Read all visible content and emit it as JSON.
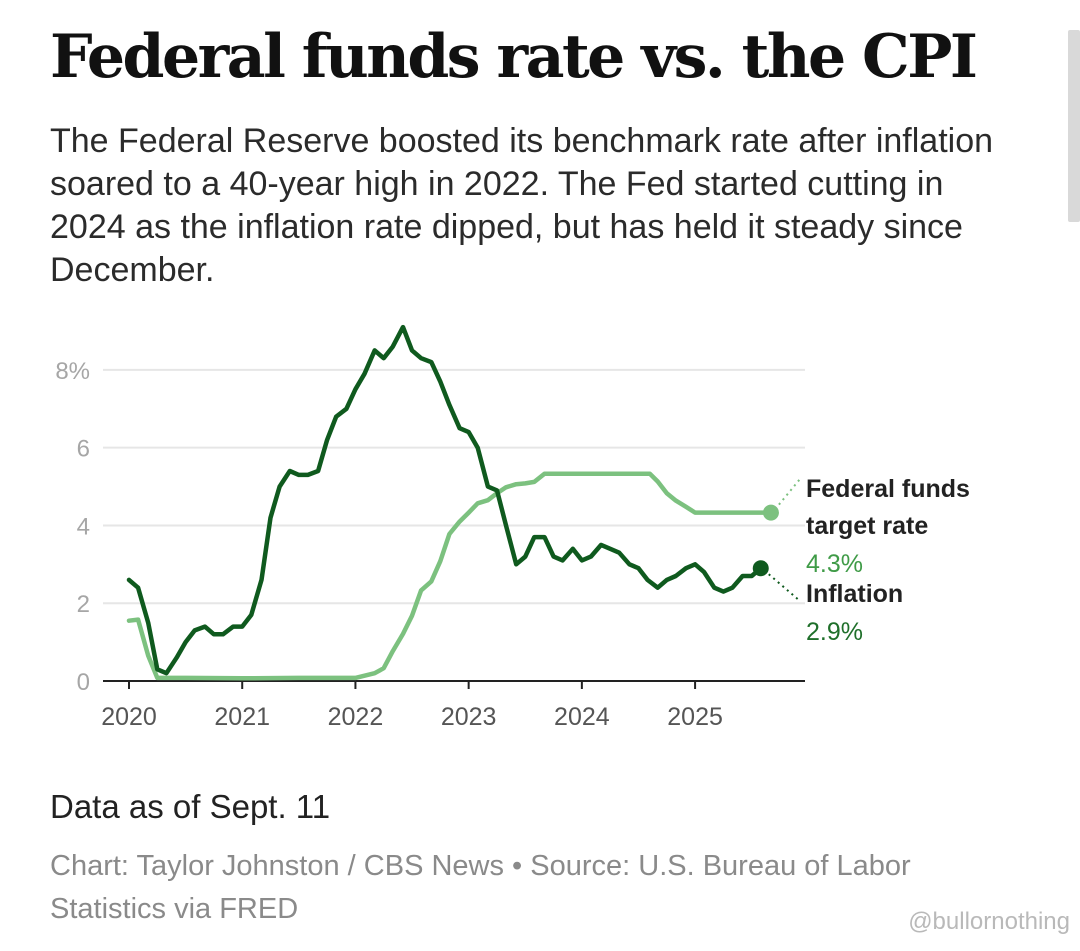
{
  "title": "Federal funds rate vs. the CPI",
  "subtitle": "The Federal Reserve boosted its benchmark rate after inflation soared to a 40-year high in 2022. The Fed started cutting in 2024 as the inflation rate dipped, but has held it steady since December.",
  "footnote": "Data as of Sept. 11",
  "credit": "Chart: Taylor Johnston / CBS News • Source: U.S. Bureau of Labor Statistics via FRED",
  "watermark": "@bullornothing",
  "colors": {
    "fed": "#7cc17f",
    "inflation": "#0f5a1e",
    "grid": "#e6e6e6",
    "axis": "#222222",
    "tick": "#a6a6a6"
  },
  "chart_data": {
    "type": "line",
    "xlim": [
      2020.0,
      2025.75
    ],
    "ylim": [
      0,
      9
    ],
    "grid": true,
    "x_ticks": [
      {
        "value": 2020,
        "label": "2020"
      },
      {
        "value": 2021,
        "label": "2021"
      },
      {
        "value": 2022,
        "label": "2022"
      },
      {
        "value": 2023,
        "label": "2023"
      },
      {
        "value": 2024,
        "label": "2024"
      },
      {
        "value": 2025,
        "label": "2025"
      }
    ],
    "y_ticks": [
      {
        "value": 0,
        "label": "0"
      },
      {
        "value": 2,
        "label": "2"
      },
      {
        "value": 4,
        "label": "4"
      },
      {
        "value": 6,
        "label": "6"
      },
      {
        "value": 8,
        "label": "8%"
      }
    ],
    "series": [
      {
        "name": "Federal funds target rate",
        "end_label": "4.3%",
        "color": "#7cc17f",
        "points": [
          [
            2020.0,
            1.55
          ],
          [
            2020.08,
            1.58
          ],
          [
            2020.17,
            0.65
          ],
          [
            2020.25,
            0.08
          ],
          [
            2020.5,
            0.08
          ],
          [
            2021.0,
            0.07
          ],
          [
            2021.5,
            0.08
          ],
          [
            2022.0,
            0.08
          ],
          [
            2022.17,
            0.2
          ],
          [
            2022.25,
            0.33
          ],
          [
            2022.33,
            0.77
          ],
          [
            2022.42,
            1.21
          ],
          [
            2022.5,
            1.68
          ],
          [
            2022.58,
            2.33
          ],
          [
            2022.67,
            2.56
          ],
          [
            2022.75,
            3.08
          ],
          [
            2022.83,
            3.78
          ],
          [
            2022.92,
            4.1
          ],
          [
            2023.0,
            4.33
          ],
          [
            2023.08,
            4.57
          ],
          [
            2023.17,
            4.65
          ],
          [
            2023.25,
            4.83
          ],
          [
            2023.33,
            4.98
          ],
          [
            2023.42,
            5.06
          ],
          [
            2023.5,
            5.08
          ],
          [
            2023.58,
            5.12
          ],
          [
            2023.67,
            5.33
          ],
          [
            2024.0,
            5.33
          ],
          [
            2024.5,
            5.33
          ],
          [
            2024.6,
            5.33
          ],
          [
            2024.67,
            5.13
          ],
          [
            2024.75,
            4.83
          ],
          [
            2024.83,
            4.64
          ],
          [
            2024.92,
            4.48
          ],
          [
            2025.0,
            4.33
          ],
          [
            2025.67,
            4.33
          ]
        ]
      },
      {
        "name": "Inflation",
        "end_label": "2.9%",
        "color": "#0f5a1e",
        "points": [
          [
            2020.0,
            2.6
          ],
          [
            2020.08,
            2.4
          ],
          [
            2020.17,
            1.5
          ],
          [
            2020.25,
            0.3
          ],
          [
            2020.33,
            0.2
          ],
          [
            2020.42,
            0.6
          ],
          [
            2020.5,
            1.0
          ],
          [
            2020.58,
            1.3
          ],
          [
            2020.67,
            1.4
          ],
          [
            2020.75,
            1.2
          ],
          [
            2020.83,
            1.2
          ],
          [
            2020.92,
            1.4
          ],
          [
            2021.0,
            1.4
          ],
          [
            2021.08,
            1.7
          ],
          [
            2021.17,
            2.6
          ],
          [
            2021.25,
            4.2
          ],
          [
            2021.33,
            5.0
          ],
          [
            2021.42,
            5.4
          ],
          [
            2021.5,
            5.3
          ],
          [
            2021.58,
            5.3
          ],
          [
            2021.67,
            5.4
          ],
          [
            2021.75,
            6.2
          ],
          [
            2021.83,
            6.8
          ],
          [
            2021.92,
            7.0
          ],
          [
            2022.0,
            7.5
          ],
          [
            2022.08,
            7.9
          ],
          [
            2022.17,
            8.5
          ],
          [
            2022.25,
            8.3
          ],
          [
            2022.33,
            8.6
          ],
          [
            2022.42,
            9.1
          ],
          [
            2022.5,
            8.5
          ],
          [
            2022.58,
            8.3
          ],
          [
            2022.67,
            8.2
          ],
          [
            2022.75,
            7.7
          ],
          [
            2022.83,
            7.1
          ],
          [
            2022.92,
            6.5
          ],
          [
            2023.0,
            6.4
          ],
          [
            2023.08,
            6.0
          ],
          [
            2023.17,
            5.0
          ],
          [
            2023.25,
            4.9
          ],
          [
            2023.33,
            4.0
          ],
          [
            2023.42,
            3.0
          ],
          [
            2023.5,
            3.2
          ],
          [
            2023.58,
            3.7
          ],
          [
            2023.67,
            3.7
          ],
          [
            2023.75,
            3.2
          ],
          [
            2023.83,
            3.1
          ],
          [
            2023.92,
            3.4
          ],
          [
            2024.0,
            3.1
          ],
          [
            2024.08,
            3.2
          ],
          [
            2024.17,
            3.5
          ],
          [
            2024.25,
            3.4
          ],
          [
            2024.33,
            3.3
          ],
          [
            2024.42,
            3.0
          ],
          [
            2024.5,
            2.9
          ],
          [
            2024.58,
            2.6
          ],
          [
            2024.67,
            2.4
          ],
          [
            2024.75,
            2.6
          ],
          [
            2024.83,
            2.7
          ],
          [
            2024.92,
            2.9
          ],
          [
            2025.0,
            3.0
          ],
          [
            2025.08,
            2.8
          ],
          [
            2025.17,
            2.4
          ],
          [
            2025.25,
            2.3
          ],
          [
            2025.33,
            2.4
          ],
          [
            2025.42,
            2.7
          ],
          [
            2025.5,
            2.7
          ],
          [
            2025.58,
            2.9
          ]
        ]
      }
    ]
  }
}
